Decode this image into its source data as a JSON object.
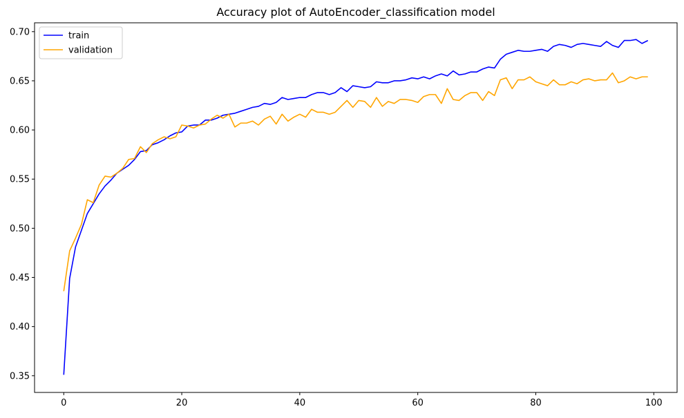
{
  "chart_data": {
    "type": "line",
    "title": "Accuracy plot of AutoEncoder_classification model",
    "xlabel": "",
    "ylabel": "",
    "xlim": [
      -4.95,
      103.95
    ],
    "ylim": [
      0.333,
      0.709
    ],
    "x_ticks": [
      0,
      20,
      40,
      60,
      80,
      100
    ],
    "y_ticks": [
      0.35,
      0.4,
      0.45,
      0.5,
      0.55,
      0.6,
      0.65,
      0.7
    ],
    "grid": false,
    "legend_position": "upper-left",
    "series": [
      {
        "name": "train",
        "color": "#0000ff",
        "values": [
          0.351,
          0.449,
          0.481,
          0.498,
          0.515,
          0.525,
          0.535,
          0.543,
          0.549,
          0.556,
          0.56,
          0.564,
          0.57,
          0.578,
          0.579,
          0.585,
          0.587,
          0.59,
          0.594,
          0.597,
          0.598,
          0.604,
          0.605,
          0.605,
          0.61,
          0.61,
          0.612,
          0.615,
          0.616,
          0.617,
          0.619,
          0.621,
          0.623,
          0.624,
          0.627,
          0.626,
          0.628,
          0.633,
          0.631,
          0.632,
          0.633,
          0.633,
          0.636,
          0.638,
          0.638,
          0.636,
          0.638,
          0.643,
          0.639,
          0.645,
          0.644,
          0.643,
          0.644,
          0.649,
          0.648,
          0.648,
          0.65,
          0.65,
          0.651,
          0.653,
          0.652,
          0.654,
          0.652,
          0.655,
          0.657,
          0.655,
          0.66,
          0.656,
          0.657,
          0.659,
          0.659,
          0.662,
          0.664,
          0.663,
          0.672,
          0.677,
          0.679,
          0.681,
          0.68,
          0.68,
          0.681,
          0.682,
          0.68,
          0.685,
          0.687,
          0.686,
          0.684,
          0.687,
          0.688,
          0.687,
          0.686,
          0.685,
          0.69,
          0.686,
          0.684,
          0.691,
          0.691,
          0.692,
          0.688,
          0.691
        ]
      },
      {
        "name": "validation",
        "color": "#ffa500",
        "values": [
          0.436,
          0.477,
          0.49,
          0.504,
          0.529,
          0.526,
          0.544,
          0.553,
          0.552,
          0.556,
          0.561,
          0.57,
          0.571,
          0.583,
          0.577,
          0.586,
          0.59,
          0.593,
          0.591,
          0.593,
          0.605,
          0.604,
          0.602,
          0.605,
          0.606,
          0.611,
          0.615,
          0.612,
          0.616,
          0.603,
          0.607,
          0.607,
          0.609,
          0.605,
          0.611,
          0.614,
          0.606,
          0.616,
          0.609,
          0.613,
          0.616,
          0.613,
          0.621,
          0.618,
          0.618,
          0.616,
          0.618,
          0.624,
          0.63,
          0.623,
          0.63,
          0.629,
          0.623,
          0.633,
          0.624,
          0.629,
          0.627,
          0.631,
          0.631,
          0.63,
          0.628,
          0.634,
          0.636,
          0.636,
          0.627,
          0.642,
          0.631,
          0.63,
          0.635,
          0.638,
          0.638,
          0.63,
          0.639,
          0.635,
          0.651,
          0.653,
          0.642,
          0.651,
          0.651,
          0.654,
          0.649,
          0.647,
          0.645,
          0.651,
          0.646,
          0.646,
          0.649,
          0.647,
          0.651,
          0.652,
          0.65,
          0.651,
          0.651,
          0.658,
          0.648,
          0.65,
          0.654,
          0.652,
          0.654,
          0.654
        ]
      }
    ]
  }
}
